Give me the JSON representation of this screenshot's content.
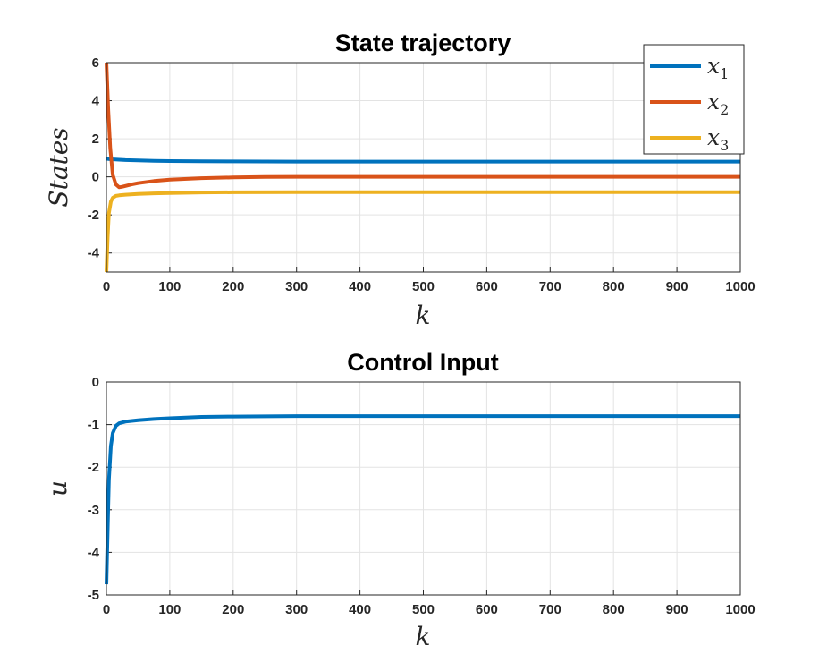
{
  "chart_data": [
    {
      "type": "line",
      "title": "State trajectory",
      "xlabel": "k",
      "ylabel": "States",
      "xlim": [
        0,
        1000
      ],
      "ylim": [
        -5,
        6
      ],
      "xticks": [
        0,
        100,
        200,
        300,
        400,
        500,
        600,
        700,
        800,
        900,
        1000
      ],
      "yticks": [
        -4,
        -2,
        0,
        2,
        4,
        6
      ],
      "grid": true,
      "legend_position": "top-right",
      "series": [
        {
          "name": "x",
          "subscript": "1",
          "color": "#0072BD",
          "x": [
            0,
            5,
            10,
            20,
            30,
            50,
            75,
            100,
            150,
            200,
            300,
            400,
            500,
            600,
            700,
            800,
            900,
            1000
          ],
          "y": [
            0.95,
            0.93,
            0.92,
            0.9,
            0.88,
            0.86,
            0.84,
            0.83,
            0.82,
            0.81,
            0.8,
            0.8,
            0.8,
            0.8,
            0.8,
            0.8,
            0.8,
            0.8
          ]
        },
        {
          "name": "x",
          "subscript": "2",
          "color": "#D95319",
          "x": [
            0,
            3,
            6,
            10,
            15,
            20,
            25,
            30,
            40,
            50,
            75,
            100,
            150,
            200,
            250,
            300,
            400,
            500,
            600,
            700,
            800,
            900,
            1000
          ],
          "y": [
            6,
            3.5,
            1.5,
            0.1,
            -0.4,
            -0.55,
            -0.52,
            -0.48,
            -0.4,
            -0.33,
            -0.22,
            -0.15,
            -0.07,
            -0.03,
            -0.01,
            0,
            0,
            0,
            0,
            0,
            0,
            0,
            0
          ]
        },
        {
          "name": "x",
          "subscript": "3",
          "color": "#EDB120",
          "x": [
            0,
            2,
            4,
            7,
            10,
            15,
            20,
            30,
            50,
            75,
            100,
            150,
            200,
            300,
            400,
            500,
            600,
            700,
            800,
            900,
            1000
          ],
          "y": [
            -5,
            -3.2,
            -1.9,
            -1.3,
            -1.1,
            -1.0,
            -0.97,
            -0.94,
            -0.9,
            -0.87,
            -0.85,
            -0.82,
            -0.81,
            -0.8,
            -0.8,
            -0.8,
            -0.8,
            -0.8,
            -0.8,
            -0.8,
            -0.8
          ]
        }
      ]
    },
    {
      "type": "line",
      "title": "Control Input",
      "xlabel": "k",
      "ylabel": "u",
      "xlim": [
        0,
        1000
      ],
      "ylim": [
        -5,
        0
      ],
      "xticks": [
        0,
        100,
        200,
        300,
        400,
        500,
        600,
        700,
        800,
        900,
        1000
      ],
      "yticks": [
        -5,
        -4,
        -3,
        -2,
        -1,
        0
      ],
      "grid": true,
      "series": [
        {
          "color": "#0072BD",
          "x": [
            0,
            2,
            4,
            7,
            10,
            15,
            20,
            30,
            50,
            75,
            100,
            150,
            200,
            300,
            400,
            500,
            600,
            700,
            800,
            900,
            1000
          ],
          "y": [
            -4.75,
            -3.5,
            -2.3,
            -1.5,
            -1.2,
            -1.03,
            -0.97,
            -0.93,
            -0.9,
            -0.87,
            -0.85,
            -0.82,
            -0.81,
            -0.8,
            -0.8,
            -0.8,
            -0.8,
            -0.8,
            -0.8,
            -0.8,
            -0.8
          ]
        }
      ]
    }
  ]
}
